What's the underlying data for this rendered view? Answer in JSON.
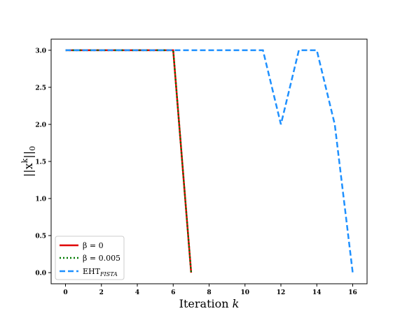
{
  "chart_data": {
    "type": "line",
    "xlabel": "Iteration",
    "xlabel_var": "k",
    "ylabel": "||x",
    "ylabel_sup": "k",
    "ylabel_end": "||",
    "ylabel_sub": "0",
    "xlim": [
      -0.8,
      16.8
    ],
    "ylim": [
      -0.15,
      3.15
    ],
    "xticks": [
      0,
      2,
      4,
      6,
      8,
      10,
      12,
      14,
      16
    ],
    "yticks": [
      0.0,
      0.5,
      1.0,
      1.5,
      2.0,
      2.5,
      3.0
    ],
    "xtick_labels": [
      "0",
      "2",
      "4",
      "6",
      "8",
      "10",
      "12",
      "14",
      "16"
    ],
    "ytick_labels": [
      "0.0",
      "0.5",
      "1.0",
      "1.5",
      "2.0",
      "2.5",
      "3.0"
    ],
    "grid": false,
    "legend_position": "lower-left",
    "series": [
      {
        "name": "β = 0",
        "color": "#e00000",
        "style": "solid",
        "x": [
          0,
          1,
          2,
          3,
          4,
          5,
          6,
          7
        ],
        "y": [
          3,
          3,
          3,
          3,
          3,
          3,
          3,
          0
        ]
      },
      {
        "name": "β = 0.005",
        "color": "#007a00",
        "style": "dotted",
        "x": [
          0,
          1,
          2,
          3,
          4,
          5,
          6,
          7
        ],
        "y": [
          3,
          3,
          3,
          3,
          3,
          3,
          3,
          0
        ]
      },
      {
        "name": "EHT",
        "name_sub": "FISTA",
        "color": "#1e90ff",
        "style": "dashed",
        "x": [
          0,
          1,
          2,
          3,
          4,
          5,
          6,
          7,
          8,
          9,
          10,
          11,
          12,
          13,
          14,
          15,
          16
        ],
        "y": [
          3,
          3,
          3,
          3,
          3,
          3,
          3,
          3,
          3,
          3,
          3,
          3,
          2,
          3,
          3,
          2,
          0
        ]
      }
    ]
  }
}
